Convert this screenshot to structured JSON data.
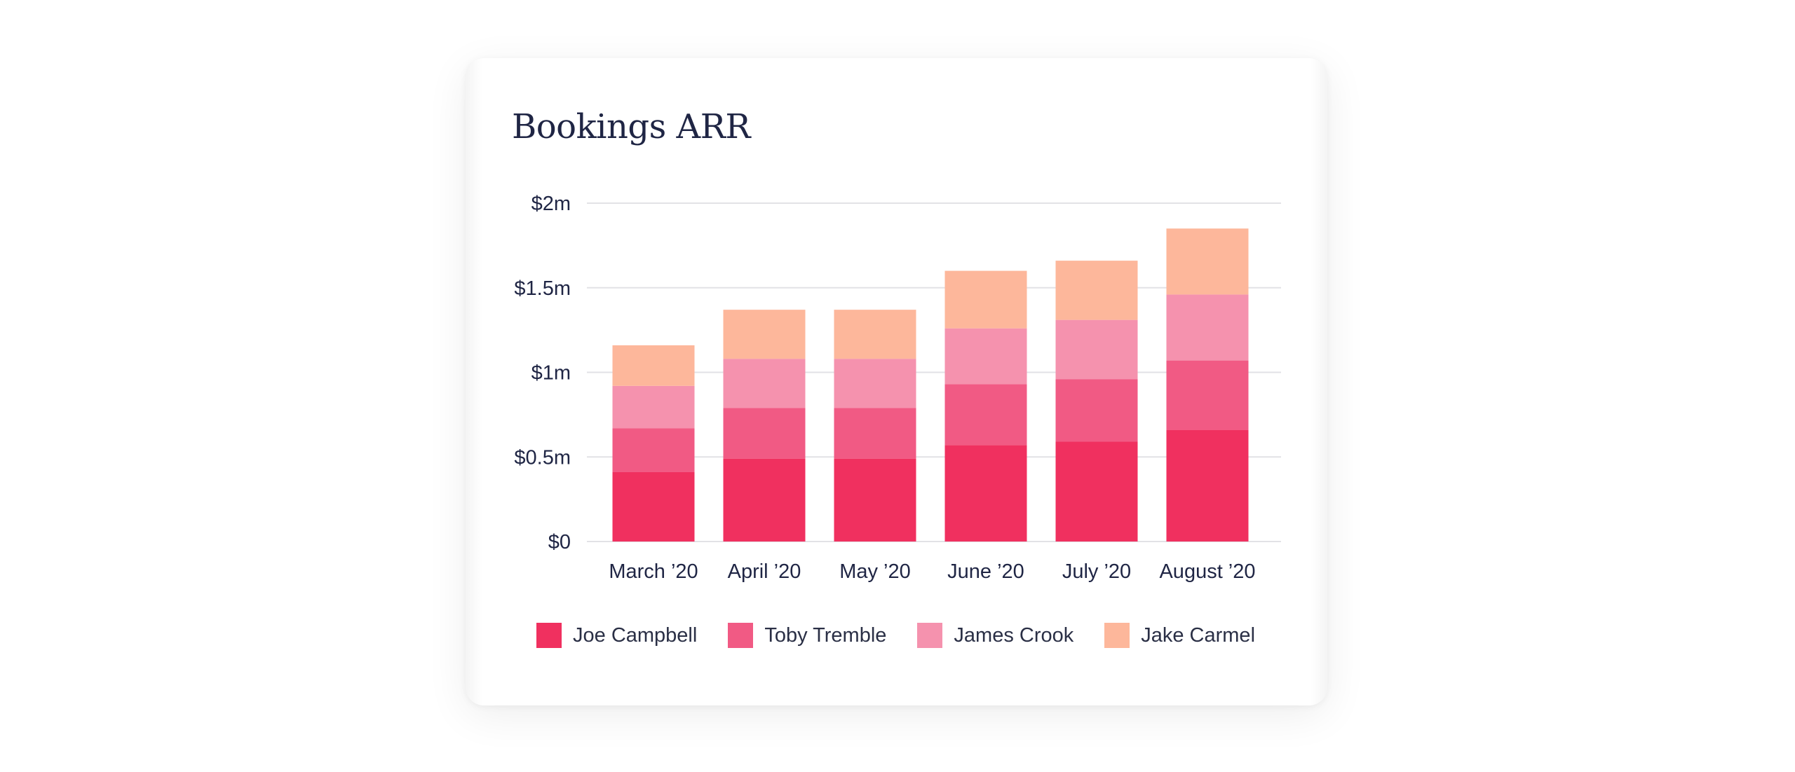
{
  "chart_data": {
    "type": "bar",
    "stacked": true,
    "title": "Bookings ARR",
    "xlabel": "",
    "ylabel": "",
    "categories": [
      "March ’20",
      "April ’20",
      "May ’20",
      "June ’20",
      "July ’20",
      "August ’20"
    ],
    "series": [
      {
        "name": "Joe Campbell",
        "color": "#f0305f",
        "values": [
          0.41,
          0.49,
          0.49,
          0.57,
          0.59,
          0.66
        ]
      },
      {
        "name": "Toby Tremble",
        "color": "#f15a84",
        "values": [
          0.26,
          0.3,
          0.3,
          0.36,
          0.37,
          0.41
        ]
      },
      {
        "name": "James Crook",
        "color": "#f592ae",
        "values": [
          0.25,
          0.29,
          0.29,
          0.33,
          0.35,
          0.39
        ]
      },
      {
        "name": "Jake Carmel",
        "color": "#fdb79b",
        "values": [
          0.24,
          0.29,
          0.29,
          0.34,
          0.35,
          0.39
        ]
      }
    ],
    "ylim": [
      0,
      2
    ],
    "yticks": [
      0,
      0.5,
      1,
      1.5,
      2
    ],
    "ytick_labels": [
      "$0",
      "$0.5m",
      "$1m",
      "$1.5m",
      "$2m"
    ],
    "grid": true,
    "legend_position": "bottom"
  }
}
